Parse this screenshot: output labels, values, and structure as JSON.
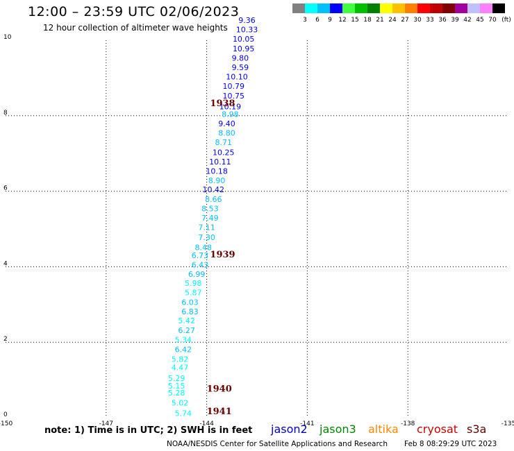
{
  "title": "12:00 – 23:59 UTC 02/06/2023",
  "subtitle": "12 hour collection of altimeter wave heights",
  "colorbar": {
    "colors": [
      "#808080",
      "#00ffff",
      "#00c0ff",
      "#0000ff",
      "#40ff40",
      "#00c000",
      "#008000",
      "#ffff00",
      "#ffc000",
      "#ff8000",
      "#ff0000",
      "#c00000",
      "#800000",
      "#a000a0",
      "#c0c0ff",
      "#ff80ff",
      "#000000"
    ],
    "labels": [
      "3",
      "6",
      "9",
      "12",
      "15",
      "18",
      "21",
      "24",
      "27",
      "30",
      "33",
      "36",
      "39",
      "42",
      "45",
      "70"
    ],
    "unit": "(ft)"
  },
  "axes": {
    "x_ticks": [
      "-150",
      "-147",
      "-144",
      "-141",
      "-138",
      "-135"
    ],
    "y_ticks": [
      "0",
      "2",
      "4",
      "6",
      "8",
      "10"
    ],
    "xlim": [
      -150,
      -135
    ],
    "ylim": [
      0,
      10
    ]
  },
  "chart_data": {
    "type": "scatter",
    "title": "12 hour collection of altimeter wave heights",
    "points": [
      {
        "x": -144.7,
        "y": 0.05,
        "label": "5.74"
      },
      {
        "x": -144.8,
        "y": 0.32,
        "label": "5.02"
      },
      {
        "x": -144.9,
        "y": 0.59,
        "label": "5.28"
      },
      {
        "x": -144.9,
        "y": 0.77,
        "label": "5.15"
      },
      {
        "x": -144.9,
        "y": 0.97,
        "label": "5.29"
      },
      {
        "x": -144.8,
        "y": 1.26,
        "label": "4.47"
      },
      {
        "x": -144.8,
        "y": 1.48,
        "label": "5.82"
      },
      {
        "x": -144.7,
        "y": 1.74,
        "label": "6.42"
      },
      {
        "x": -144.7,
        "y": 1.99,
        "label": "5.34"
      },
      {
        "x": -144.6,
        "y": 2.24,
        "label": "6.27"
      },
      {
        "x": -144.6,
        "y": 2.5,
        "label": "5.42"
      },
      {
        "x": -144.5,
        "y": 2.74,
        "label": "6.83"
      },
      {
        "x": -144.5,
        "y": 2.99,
        "label": "6.03"
      },
      {
        "x": -144.4,
        "y": 3.24,
        "label": "5.87"
      },
      {
        "x": -144.4,
        "y": 3.49,
        "label": "5.98"
      },
      {
        "x": -144.3,
        "y": 3.73,
        "label": "6.99"
      },
      {
        "x": -144.2,
        "y": 3.98,
        "label": "6.43"
      },
      {
        "x": -144.2,
        "y": 4.23,
        "label": "6.73"
      },
      {
        "x": -144.1,
        "y": 4.44,
        "label": "8.48"
      },
      {
        "x": -144.0,
        "y": 4.71,
        "label": "7.30"
      },
      {
        "x": -144.0,
        "y": 4.97,
        "label": "7.11"
      },
      {
        "x": -143.9,
        "y": 5.22,
        "label": "7.49"
      },
      {
        "x": -143.9,
        "y": 5.47,
        "label": "8.53"
      },
      {
        "x": -143.8,
        "y": 5.72,
        "label": "8.66"
      },
      {
        "x": -143.8,
        "y": 5.97,
        "label": "10.42"
      },
      {
        "x": -143.7,
        "y": 6.21,
        "label": "8.90"
      },
      {
        "x": -143.7,
        "y": 6.46,
        "label": "10.18"
      },
      {
        "x": -143.6,
        "y": 6.71,
        "label": "10.11"
      },
      {
        "x": -143.5,
        "y": 6.96,
        "label": "10.25"
      },
      {
        "x": -143.5,
        "y": 7.22,
        "label": "8.71"
      },
      {
        "x": -143.4,
        "y": 7.47,
        "label": "8.80"
      },
      {
        "x": -143.4,
        "y": 7.72,
        "label": "9.40"
      },
      {
        "x": -143.3,
        "y": 7.97,
        "label": "8.98"
      },
      {
        "x": -143.3,
        "y": 8.17,
        "label": "10.19"
      },
      {
        "x": -143.2,
        "y": 8.46,
        "label": "10.75"
      },
      {
        "x": -143.2,
        "y": 8.71,
        "label": "10.79"
      },
      {
        "x": -143.1,
        "y": 8.96,
        "label": "10.10"
      },
      {
        "x": -143.0,
        "y": 9.21,
        "label": "9.59"
      },
      {
        "x": -143.0,
        "y": 9.46,
        "label": "9.80"
      },
      {
        "x": -142.9,
        "y": 9.71,
        "label": "10.95"
      },
      {
        "x": -142.9,
        "y": 9.96,
        "label": "10.05"
      },
      {
        "x": -142.8,
        "y": 10.21,
        "label": "10.33"
      },
      {
        "x": -142.8,
        "y": 10.46,
        "label": "9.36"
      }
    ],
    "pass_times": [
      {
        "x": -143.9,
        "y": 8.25,
        "label": "1938"
      },
      {
        "x": -143.9,
        "y": 4.25,
        "label": "1939"
      },
      {
        "x": -144.0,
        "y": 0.69,
        "label": "1940"
      },
      {
        "x": -144.0,
        "y": 0.09,
        "label": "1941"
      }
    ]
  },
  "note": "note:  1) Time is in UTC;  2) SWH is in feet",
  "satellites": [
    {
      "name": "jason2",
      "color": "#0000cc"
    },
    {
      "name": "jason3",
      "color": "#008800"
    },
    {
      "name": "altika",
      "color": "#ff8800"
    },
    {
      "name": "cryosat",
      "color": "#cc0000"
    },
    {
      "name": "s3a",
      "color": "#660000"
    }
  ],
  "credit": "NOAA/NESDIS Center for Satellite Applications and Research",
  "timestamp": "Feb  8 08:29:29 UTC 2023"
}
